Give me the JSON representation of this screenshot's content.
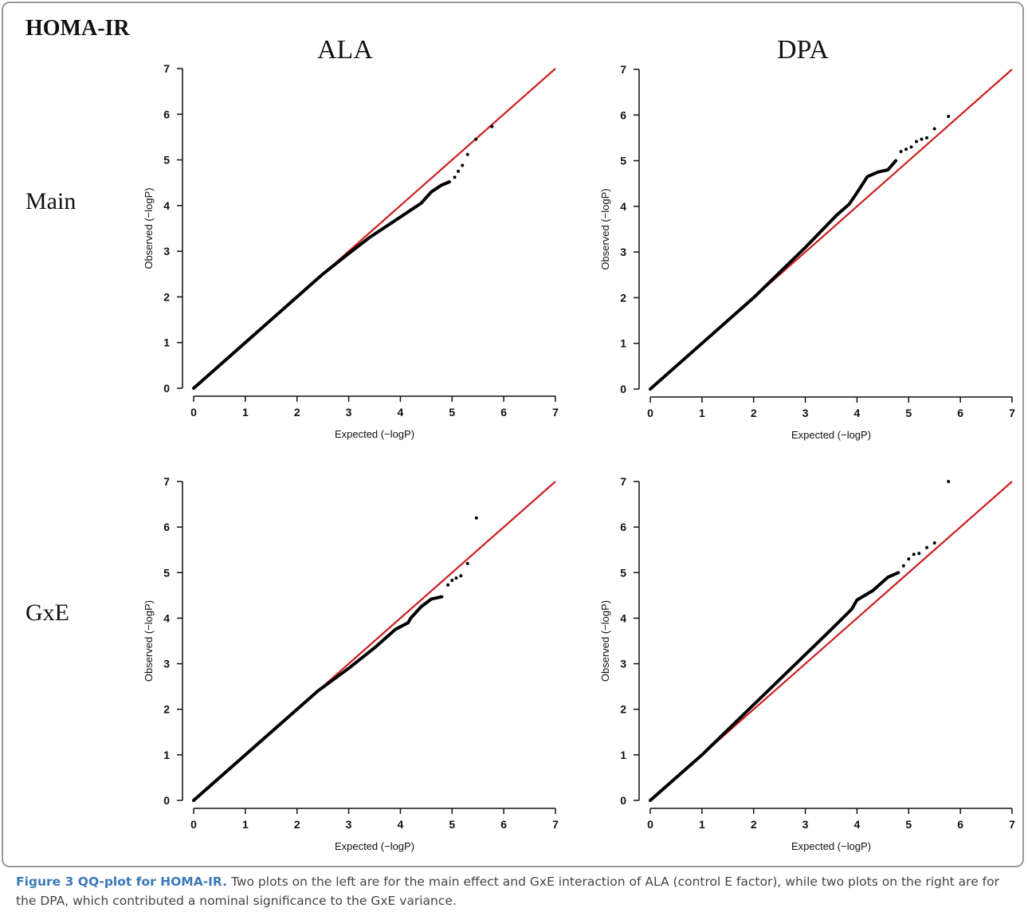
{
  "figure": {
    "title": "HOMA-IR",
    "col_titles": [
      "ALA",
      "DPA"
    ],
    "row_titles": [
      "Main",
      "GxE"
    ],
    "caption_lead": "Figure 3 QQ-plot for HOMA-IR.",
    "caption_body": " Two plots on the left are for the main effect and GxE interaction of ALA (control E factor), while two plots on the right are for the DPA, which contributed a nominal significance to the GxE variance."
  },
  "colors": {
    "reference_line": "#cc1f1f",
    "points": "#000000",
    "border": "#9a9a9a",
    "caption_lead": "#3a7ab8"
  },
  "chart_data": [
    {
      "type": "scatter",
      "panel": "ALA Main",
      "xlabel": "Expected (−logP)",
      "ylabel": "Observed (−logP)",
      "xlim": [
        0,
        7
      ],
      "ylim": [
        0,
        7
      ],
      "xticks": [
        0,
        1,
        2,
        3,
        4,
        5,
        6,
        7
      ],
      "yticks": [
        0,
        1,
        2,
        3,
        4,
        5,
        6,
        7
      ],
      "reference_line": [
        [
          0,
          0
        ],
        [
          7,
          7
        ]
      ],
      "curve": [
        [
          0,
          0
        ],
        [
          2.5,
          2.5
        ],
        [
          3.0,
          2.95
        ],
        [
          3.4,
          3.3
        ],
        [
          3.8,
          3.6
        ],
        [
          4.2,
          3.9
        ],
        [
          4.4,
          4.05
        ],
        [
          4.6,
          4.3
        ],
        [
          4.8,
          4.45
        ],
        [
          4.95,
          4.52
        ]
      ],
      "points": [
        [
          5.05,
          4.62
        ],
        [
          5.12,
          4.75
        ],
        [
          5.2,
          4.88
        ],
        [
          5.3,
          5.12
        ],
        [
          5.46,
          5.45
        ],
        [
          5.77,
          5.73
        ]
      ]
    },
    {
      "type": "scatter",
      "panel": "DPA Main",
      "xlabel": "Expected (−logP)",
      "ylabel": "Observed (−logP)",
      "xlim": [
        0,
        7
      ],
      "ylim": [
        0,
        7
      ],
      "xticks": [
        0,
        1,
        2,
        3,
        4,
        5,
        6,
        7
      ],
      "yticks": [
        0,
        1,
        2,
        3,
        4,
        5,
        6,
        7
      ],
      "reference_line": [
        [
          0,
          0
        ],
        [
          7,
          7
        ]
      ],
      "curve": [
        [
          0,
          0
        ],
        [
          2.0,
          2.0
        ],
        [
          2.5,
          2.55
        ],
        [
          3.0,
          3.1
        ],
        [
          3.3,
          3.45
        ],
        [
          3.6,
          3.8
        ],
        [
          3.85,
          4.05
        ],
        [
          4.0,
          4.3
        ],
        [
          4.2,
          4.65
        ],
        [
          4.4,
          4.75
        ],
        [
          4.6,
          4.8
        ],
        [
          4.75,
          5.0
        ]
      ],
      "points": [
        [
          4.85,
          5.2
        ],
        [
          4.95,
          5.25
        ],
        [
          5.05,
          5.3
        ],
        [
          5.15,
          5.42
        ],
        [
          5.25,
          5.47
        ],
        [
          5.35,
          5.5
        ],
        [
          5.5,
          5.7
        ],
        [
          5.77,
          5.97
        ]
      ]
    },
    {
      "type": "scatter",
      "panel": "ALA GxE",
      "xlabel": "Expected (−logP)",
      "ylabel": "Observed (−logP)",
      "xlim": [
        0,
        7
      ],
      "ylim": [
        0,
        7
      ],
      "xticks": [
        0,
        1,
        2,
        3,
        4,
        5,
        6,
        7
      ],
      "yticks": [
        0,
        1,
        2,
        3,
        4,
        5,
        6,
        7
      ],
      "reference_line": [
        [
          0,
          0
        ],
        [
          7,
          7
        ]
      ],
      "curve": [
        [
          0,
          0
        ],
        [
          2.4,
          2.4
        ],
        [
          3.0,
          2.9
        ],
        [
          3.5,
          3.35
        ],
        [
          3.9,
          3.75
        ],
        [
          4.15,
          3.9
        ],
        [
          4.2,
          4.0
        ],
        [
          4.4,
          4.25
        ],
        [
          4.6,
          4.42
        ],
        [
          4.8,
          4.47
        ]
      ],
      "points": [
        [
          4.92,
          4.73
        ],
        [
          5.0,
          4.83
        ],
        [
          5.08,
          4.88
        ],
        [
          5.17,
          4.93
        ],
        [
          5.3,
          5.2
        ],
        [
          5.47,
          6.2
        ]
      ]
    },
    {
      "type": "scatter",
      "panel": "DPA GxE",
      "xlabel": "Expected (−logP)",
      "ylabel": "Observed (−logP)",
      "xlim": [
        0,
        7
      ],
      "ylim": [
        0,
        7
      ],
      "xticks": [
        0,
        1,
        2,
        3,
        4,
        5,
        6,
        7
      ],
      "yticks": [
        0,
        1,
        2,
        3,
        4,
        5,
        6,
        7
      ],
      "reference_line": [
        [
          0,
          0
        ],
        [
          7,
          7
        ]
      ],
      "curve": [
        [
          0,
          0
        ],
        [
          1.0,
          1.0
        ],
        [
          2.0,
          2.1
        ],
        [
          3.0,
          3.2
        ],
        [
          3.5,
          3.75
        ],
        [
          3.9,
          4.2
        ],
        [
          4.0,
          4.4
        ],
        [
          4.3,
          4.6
        ],
        [
          4.6,
          4.9
        ],
        [
          4.8,
          5.0
        ]
      ],
      "points": [
        [
          4.9,
          5.15
        ],
        [
          5.0,
          5.3
        ],
        [
          5.1,
          5.4
        ],
        [
          5.2,
          5.42
        ],
        [
          5.35,
          5.55
        ],
        [
          5.5,
          5.65
        ],
        [
          5.77,
          7.0
        ]
      ]
    }
  ]
}
